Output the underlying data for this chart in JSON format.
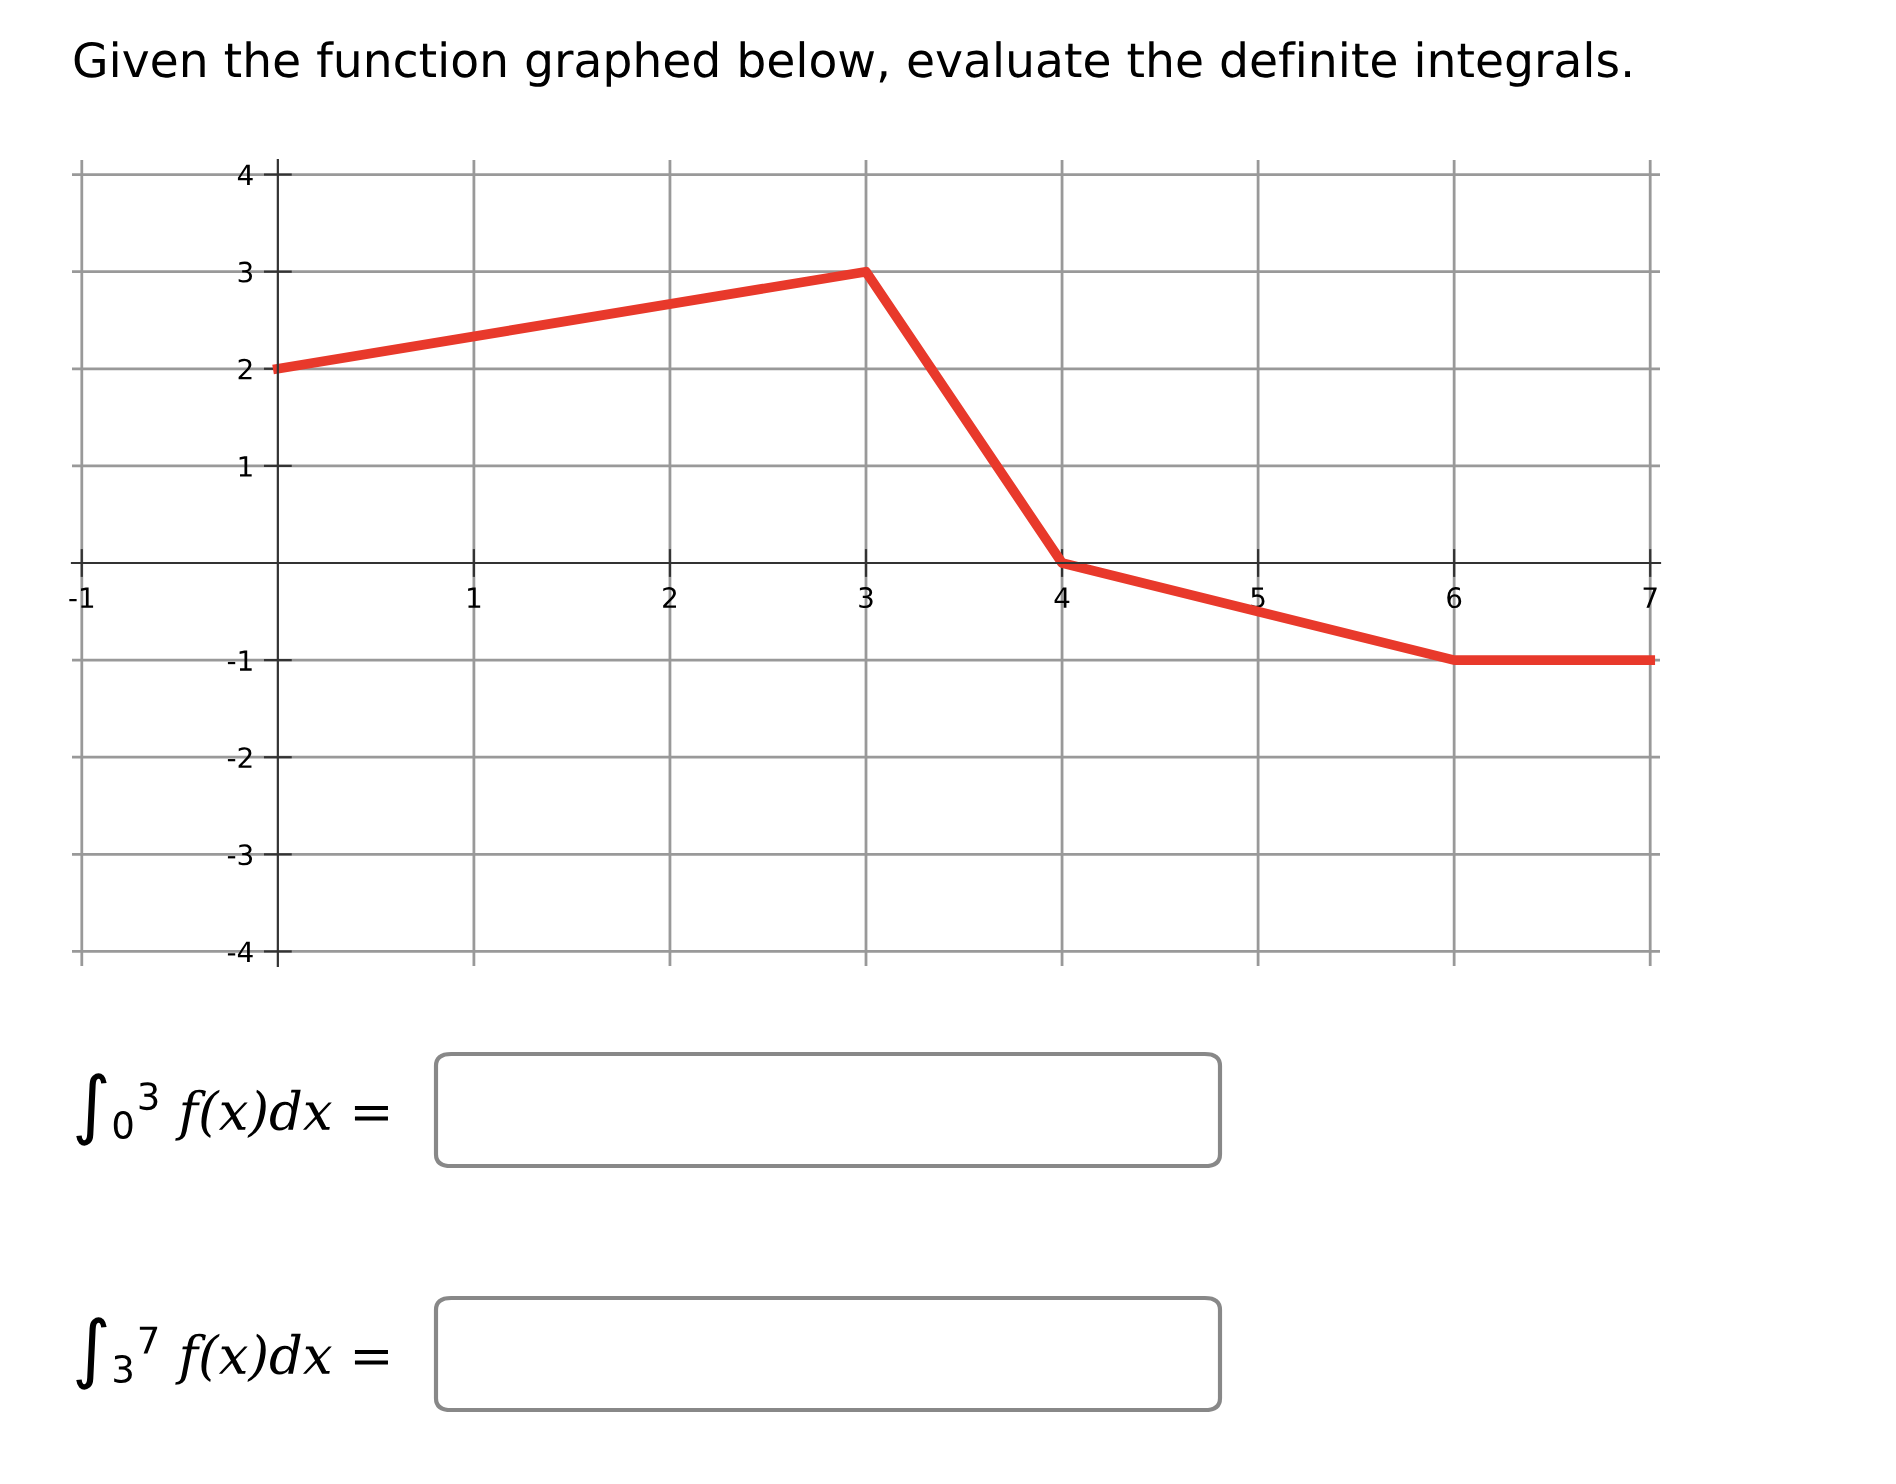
{
  "chart_data": {
    "type": "line",
    "title": "Given the function graphed below, evaluate the definite integrals.",
    "x": [
      0,
      3,
      4,
      6,
      7
    ],
    "series": [
      {
        "color": "#e8392b",
        "values": [
          2,
          3,
          0,
          -1,
          -1
        ]
      }
    ],
    "xlim": [
      -1.05,
      7.05
    ],
    "ylim": [
      -4.15,
      4.15
    ],
    "xticks": [
      -1,
      1,
      2,
      3,
      4,
      5,
      6,
      7
    ],
    "yticks": [
      -4,
      -3,
      -2,
      -1,
      1,
      2,
      3,
      4
    ],
    "grid": true,
    "marker": "none",
    "line_style": "solid",
    "annotations": [
      "∫$_{0}$$^{3}$ f(x)dx =",
      "∫$_{3}$$^{7}$ f(x)dx ="
    ]
  }
}
